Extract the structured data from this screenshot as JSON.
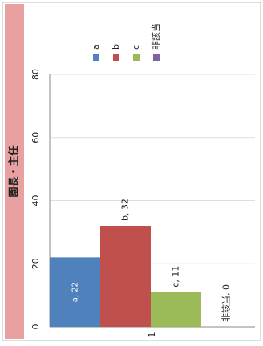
{
  "chart_data": {
    "type": "bar",
    "title": "園長・主任",
    "categories": [
      "1"
    ],
    "series": [
      {
        "name": "a",
        "color": "#4f81bd",
        "values": [
          22
        ],
        "value_labels": [
          "a, 22"
        ]
      },
      {
        "name": "b",
        "color": "#c0504d",
        "values": [
          32
        ],
        "value_labels": [
          "b, 32"
        ]
      },
      {
        "name": "c",
        "color": "#9bbb59",
        "values": [
          11
        ],
        "value_labels": [
          "c, 11"
        ]
      },
      {
        "name": "非該当",
        "color": "#8064a2",
        "values": [
          0
        ],
        "value_labels": [
          "非該当, 0"
        ]
      }
    ],
    "ylim": [
      0,
      80
    ],
    "yticks": [
      0,
      20,
      40,
      60,
      80
    ],
    "grid": true,
    "legend": "top"
  }
}
